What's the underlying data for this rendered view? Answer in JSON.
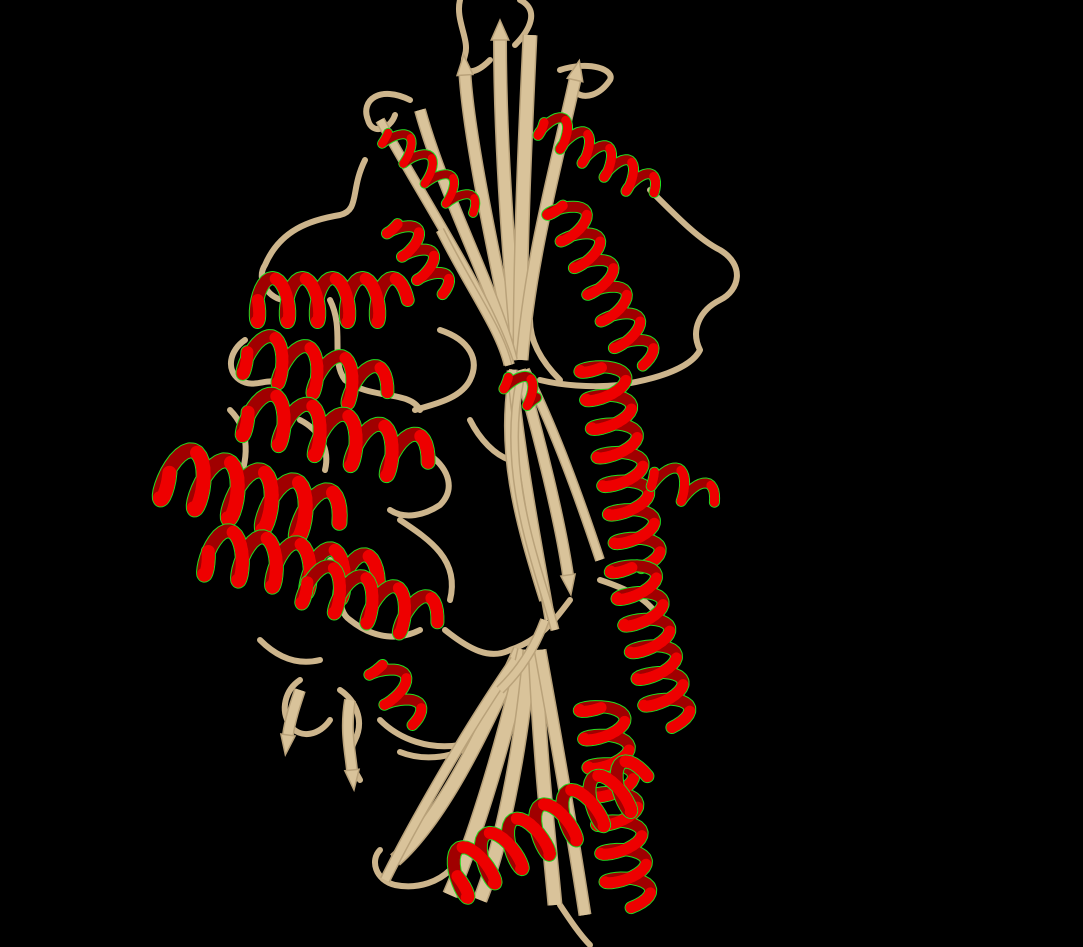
{
  "viewer": {
    "background_color": "#000000",
    "representation": "cartoon",
    "colors": {
      "helix": "#ee0000",
      "helix_outline": "#22dd22",
      "strand": "#d9c39a",
      "strand_shade": "#b9a27a",
      "loop": "#cdb58c"
    }
  }
}
